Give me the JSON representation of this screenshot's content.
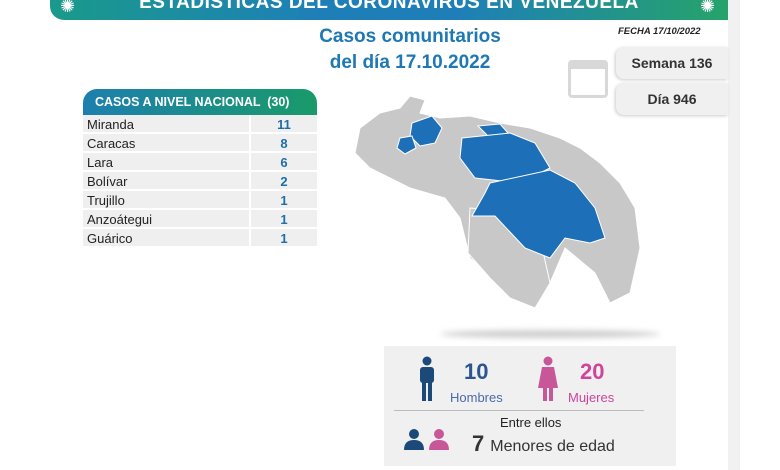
{
  "header": {
    "banner_title": "ESTADÍSTICAS DEL CORONAVIRUS EN VENEZUELA",
    "title_line1": "Casos comunitarios",
    "title_line2": "del día 17.10.2022",
    "fecha": "FECHA 17/10/2022",
    "semana": "Semana 136",
    "dia": "Día 946"
  },
  "table": {
    "title": "CASOS A NIVEL NACIONAL  (30)",
    "rows": [
      {
        "name": "Miranda",
        "value": "11"
      },
      {
        "name": "Caracas",
        "value": "8"
      },
      {
        "name": "Lara",
        "value": "6"
      },
      {
        "name": "Bolívar",
        "value": "2"
      },
      {
        "name": "Trujillo",
        "value": "1"
      },
      {
        "name": "Anzoátegui",
        "value": "1"
      },
      {
        "name": "Guárico",
        "value": "1"
      }
    ]
  },
  "stats": {
    "men_count": "10",
    "men_label": "Hombres",
    "women_count": "20",
    "women_label": "Mujeres",
    "between": "Entre ellos",
    "minors_count": "7",
    "minors_label": "Menores de edad"
  },
  "colors": {
    "blue": "#1d6fb8",
    "map_grey": "#c8c8c8",
    "men": "#1b4a7a",
    "women": "#d0459a"
  }
}
